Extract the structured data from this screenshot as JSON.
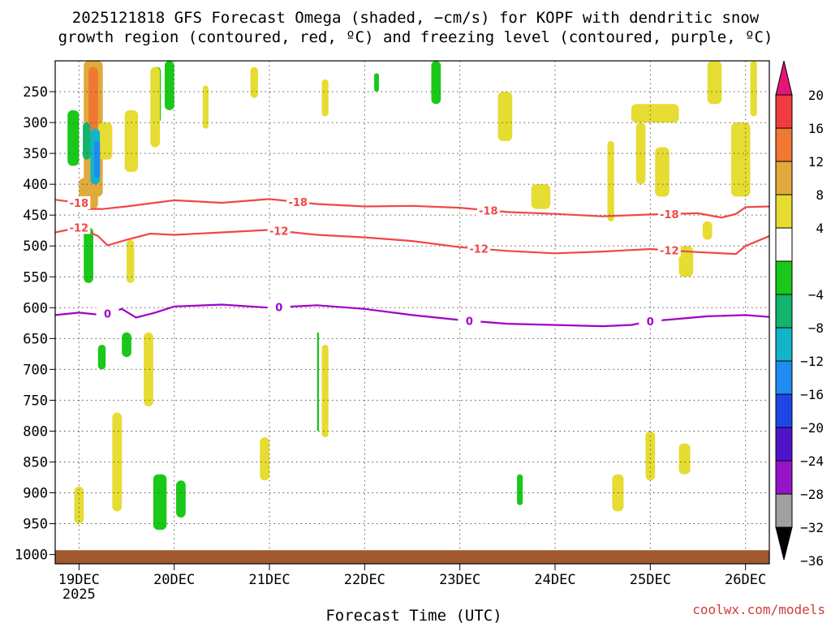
{
  "title_lines": [
    "2025121818 GFS Forecast Omega (shaded, −cm/s) for KOPF with dendritic snow",
    "growth region (contoured, red, ºC) and freezing level (contoured, purple, ºC)"
  ],
  "xlabel": "Forecast Time (UTC)",
  "watermark": "coolwx.com/models",
  "chart_data": {
    "type": "heatmap",
    "x_axis": {
      "ticks": [
        "19DEC",
        "20DEC",
        "21DEC",
        "22DEC",
        "23DEC",
        "24DEC",
        "25DEC",
        "26DEC"
      ],
      "year_label": "2025",
      "range_days": [
        18.75,
        26.25
      ]
    },
    "y_axis": {
      "scale": "pressure, inverted (hPa)",
      "ticks": [
        250,
        300,
        350,
        400,
        450,
        500,
        550,
        600,
        650,
        700,
        750,
        800,
        850,
        900,
        950,
        1000
      ],
      "range": [
        200,
        1015
      ]
    },
    "colorbar": {
      "tick_labels": [
        "20",
        "16",
        "12",
        "8",
        "4",
        "−4",
        "−8",
        "−12",
        "−16",
        "−20",
        "−24",
        "−28",
        "−32",
        "−36"
      ],
      "bins": [
        {
          "range": [
            16,
            20
          ],
          "color": "#f03c3c"
        },
        {
          "range": [
            12,
            16
          ],
          "color": "#f07832"
        },
        {
          "range": [
            8,
            12
          ],
          "color": "#e0aa3c"
        },
        {
          "range": [
            4,
            8
          ],
          "color": "#e6dc32"
        },
        {
          "range": [
            -4,
            4
          ],
          "color": "#ffffff"
        },
        {
          "range": [
            -8,
            -4
          ],
          "color": "#19c819"
        },
        {
          "range": [
            -12,
            -8
          ],
          "color": "#12b46e"
        },
        {
          "range": [
            -16,
            -12
          ],
          "color": "#14b4c8"
        },
        {
          "range": [
            -20,
            -16
          ],
          "color": "#1e8cf0"
        },
        {
          "range": [
            -24,
            -20
          ],
          "color": "#1e46e6"
        },
        {
          "range": [
            -28,
            -24
          ],
          "color": "#5014c8"
        },
        {
          "range": [
            -32,
            -28
          ],
          "color": "#9614c8"
        },
        {
          "range": [
            -36,
            -32
          ],
          "color": "#a0a0a0"
        }
      ],
      "top_extend_color": "#e6147a",
      "bottom_extend_color": "#000000"
    },
    "contours": [
      {
        "level": "-18",
        "color": "#f04646",
        "points": [
          [
            18.75,
            425
          ],
          [
            19.0,
            430
          ],
          [
            19.1,
            440
          ],
          [
            19.25,
            440
          ],
          [
            19.5,
            436
          ],
          [
            20.0,
            426
          ],
          [
            20.5,
            430
          ],
          [
            21.0,
            424
          ],
          [
            21.5,
            432
          ],
          [
            22.0,
            436
          ],
          [
            22.5,
            435
          ],
          [
            23.0,
            438
          ],
          [
            23.5,
            445
          ],
          [
            24.0,
            448
          ],
          [
            24.5,
            452
          ],
          [
            25.0,
            449
          ],
          [
            25.5,
            447
          ],
          [
            25.75,
            454
          ],
          [
            25.9,
            448
          ],
          [
            26.0,
            437
          ],
          [
            26.25,
            436
          ]
        ],
        "labels": [
          [
            19.0,
            "-18"
          ],
          [
            21.3,
            "-18"
          ],
          [
            23.3,
            "-18"
          ],
          [
            25.2,
            "-18"
          ]
        ]
      },
      {
        "level": "-12",
        "color": "#f04646",
        "points": [
          [
            18.75,
            478
          ],
          [
            19.0,
            470
          ],
          [
            19.2,
            484
          ],
          [
            19.3,
            499
          ],
          [
            19.5,
            490
          ],
          [
            19.75,
            480
          ],
          [
            20.0,
            482
          ],
          [
            20.5,
            478
          ],
          [
            21.0,
            474
          ],
          [
            21.5,
            482
          ],
          [
            22.0,
            486
          ],
          [
            22.5,
            492
          ],
          [
            23.0,
            502
          ],
          [
            23.5,
            508
          ],
          [
            24.0,
            512
          ],
          [
            24.5,
            509
          ],
          [
            25.0,
            505
          ],
          [
            25.5,
            510
          ],
          [
            25.9,
            513
          ],
          [
            26.0,
            500
          ],
          [
            26.25,
            484
          ]
        ],
        "labels": [
          [
            19.0,
            "-12"
          ],
          [
            21.1,
            "-12"
          ],
          [
            23.2,
            "-12"
          ],
          [
            25.2,
            "-12"
          ]
        ]
      },
      {
        "level": "0",
        "color": "#a000c8",
        "points": [
          [
            18.75,
            612
          ],
          [
            19.0,
            608
          ],
          [
            19.25,
            612
          ],
          [
            19.45,
            602
          ],
          [
            19.6,
            616
          ],
          [
            19.8,
            608
          ],
          [
            20.0,
            598
          ],
          [
            20.5,
            595
          ],
          [
            21.0,
            600
          ],
          [
            21.5,
            596
          ],
          [
            22.0,
            602
          ],
          [
            22.5,
            612
          ],
          [
            23.0,
            620
          ],
          [
            23.5,
            626
          ],
          [
            24.0,
            628
          ],
          [
            24.5,
            630
          ],
          [
            24.8,
            628
          ],
          [
            25.0,
            622
          ],
          [
            25.3,
            618
          ],
          [
            25.6,
            614
          ],
          [
            26.0,
            612
          ],
          [
            26.25,
            615
          ]
        ],
        "labels": [
          [
            19.3,
            "0"
          ],
          [
            21.1,
            "0"
          ],
          [
            23.1,
            "0"
          ],
          [
            25.0,
            "0"
          ]
        ]
      }
    ],
    "shaded_regions": [
      {
        "x": [
          19.05,
          19.25
        ],
        "p": [
          200,
          420
        ],
        "value": 10
      },
      {
        "x": [
          19.1,
          19.2
        ],
        "p": [
          210,
          330
        ],
        "value": 14
      },
      {
        "x": [
          19.2,
          19.35
        ],
        "p": [
          300,
          360
        ],
        "value": 6
      },
      {
        "x": [
          19.0,
          19.2
        ],
        "p": [
          390,
          440
        ],
        "value": 10
      },
      {
        "x": [
          18.88,
          19.0
        ],
        "p": [
          280,
          370
        ],
        "value": -6
      },
      {
        "x": [
          19.04,
          19.12
        ],
        "p": [
          300,
          360
        ],
        "value": -10
      },
      {
        "x": [
          19.12,
          19.22
        ],
        "p": [
          310,
          400
        ],
        "value": -14
      },
      {
        "x": [
          19.16,
          19.22
        ],
        "p": [
          330,
          390
        ],
        "value": -18
      },
      {
        "x": [
          19.48,
          19.62
        ],
        "p": [
          280,
          380
        ],
        "value": 6
      },
      {
        "x": [
          19.78,
          19.86
        ],
        "p": [
          210,
          300
        ],
        "value": -6
      },
      {
        "x": [
          19.8,
          19.84
        ],
        "p": [
          230,
          280
        ],
        "value": -12
      },
      {
        "x": [
          19.9,
          20.0
        ],
        "p": [
          200,
          280
        ],
        "value": -6
      },
      {
        "x": [
          19.75,
          19.85
        ],
        "p": [
          210,
          340
        ],
        "value": 6
      },
      {
        "x": [
          20.3,
          20.36
        ],
        "p": [
          240,
          310
        ],
        "value": 6
      },
      {
        "x": [
          20.8,
          20.88
        ],
        "p": [
          210,
          260
        ],
        "value": 6
      },
      {
        "x": [
          21.55,
          21.62
        ],
        "p": [
          230,
          290
        ],
        "value": 6
      },
      {
        "x": [
          22.1,
          22.15
        ],
        "p": [
          220,
          250
        ],
        "value": -6
      },
      {
        "x": [
          22.7,
          22.8
        ],
        "p": [
          200,
          270
        ],
        "value": -6
      },
      {
        "x": [
          23.4,
          23.55
        ],
        "p": [
          250,
          330
        ],
        "value": 6
      },
      {
        "x": [
          23.75,
          23.95
        ],
        "p": [
          400,
          440
        ],
        "value": 6
      },
      {
        "x": [
          24.55,
          24.62
        ],
        "p": [
          330,
          460
        ],
        "value": 6
      },
      {
        "x": [
          24.8,
          25.3
        ],
        "p": [
          270,
          300
        ],
        "value": 6
      },
      {
        "x": [
          24.85,
          24.95
        ],
        "p": [
          300,
          400
        ],
        "value": 6
      },
      {
        "x": [
          25.05,
          25.2
        ],
        "p": [
          340,
          420
        ],
        "value": 6
      },
      {
        "x": [
          25.6,
          25.75
        ],
        "p": [
          200,
          270
        ],
        "value": 6
      },
      {
        "x": [
          25.85,
          26.05
        ],
        "p": [
          300,
          420
        ],
        "value": 6
      },
      {
        "x": [
          26.05,
          26.12
        ],
        "p": [
          200,
          290
        ],
        "value": 6
      },
      {
        "x": [
          25.3,
          25.45
        ],
        "p": [
          500,
          550
        ],
        "value": 6
      },
      {
        "x": [
          25.55,
          25.65
        ],
        "p": [
          460,
          490
        ],
        "value": 6
      },
      {
        "x": [
          19.05,
          19.15
        ],
        "p": [
          470,
          560
        ],
        "value": -6
      },
      {
        "x": [
          19.5,
          19.58
        ],
        "p": [
          490,
          560
        ],
        "value": 6
      },
      {
        "x": [
          19.45,
          19.55
        ],
        "p": [
          640,
          680
        ],
        "value": -6
      },
      {
        "x": [
          19.2,
          19.28
        ],
        "p": [
          660,
          700
        ],
        "value": -6
      },
      {
        "x": [
          19.68,
          19.78
        ],
        "p": [
          640,
          760
        ],
        "value": 6
      },
      {
        "x": [
          19.35,
          19.45
        ],
        "p": [
          770,
          930
        ],
        "value": 6
      },
      {
        "x": [
          19.78,
          19.92
        ],
        "p": [
          870,
          960
        ],
        "value": -6
      },
      {
        "x": [
          20.02,
          20.12
        ],
        "p": [
          880,
          940
        ],
        "value": -6
      },
      {
        "x": [
          21.5,
          21.52
        ],
        "p": [
          640,
          800
        ],
        "value": -6
      },
      {
        "x": [
          21.55,
          21.62
        ],
        "p": [
          660,
          810
        ],
        "value": 6
      },
      {
        "x": [
          20.9,
          21.0
        ],
        "p": [
          810,
          880
        ],
        "value": 6
      },
      {
        "x": [
          18.95,
          19.05
        ],
        "p": [
          890,
          950
        ],
        "value": 6
      },
      {
        "x": [
          23.6,
          23.66
        ],
        "p": [
          870,
          920
        ],
        "value": -6
      },
      {
        "x": [
          24.6,
          24.72
        ],
        "p": [
          870,
          930
        ],
        "value": 6
      },
      {
        "x": [
          24.95,
          25.05
        ],
        "p": [
          800,
          880
        ],
        "value": 6
      },
      {
        "x": [
          25.3,
          25.42
        ],
        "p": [
          820,
          870
        ],
        "value": 6
      }
    ],
    "terrain_band": {
      "p": [
        993,
        1015
      ],
      "color": "#a0582d"
    },
    "grid": true
  }
}
